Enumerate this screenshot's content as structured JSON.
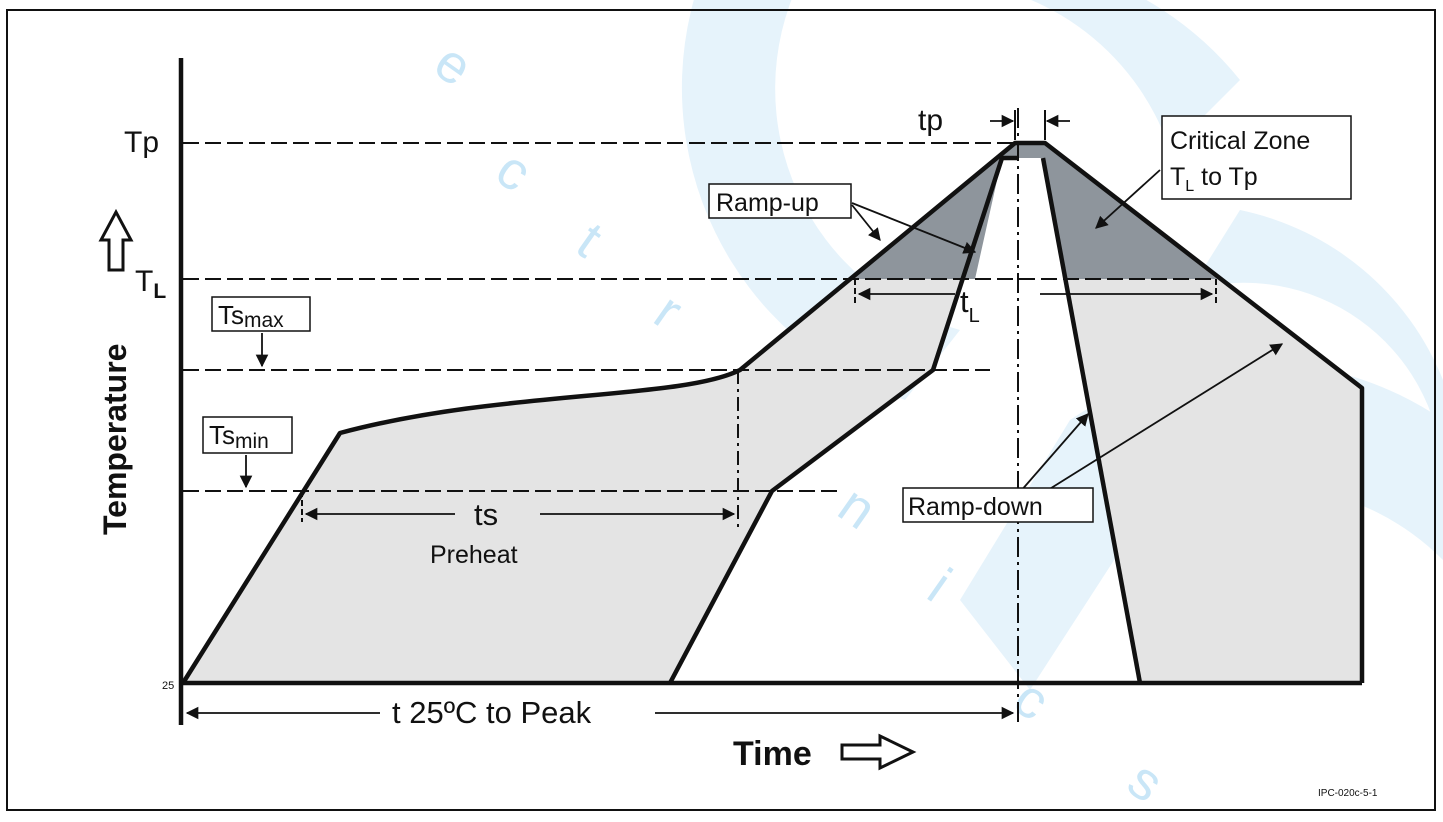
{
  "labels": {
    "tp_axis": "Tp",
    "tl_axis_main": "T",
    "tl_axis_sub": "L",
    "tick_25": "25",
    "tp_duration": "tp",
    "critical_zone_line1": "Critical Zone",
    "critical_zone_line2_main": "T",
    "critical_zone_line2_sub": "L",
    "critical_zone_line2_rest": " to Tp",
    "ramp_up": "Ramp-up",
    "ramp_down": "Ramp-down",
    "tsmax_main": "Ts",
    "tsmax_sub": "max",
    "tsmin_main": "Ts",
    "tsmin_sub": "min",
    "ts": "ts",
    "preheat": "Preheat",
    "tl_span_main": "t",
    "tl_span_sub": "L",
    "t25_to_peak": "t  25ºC to Peak",
    "y_axis_title": "Temperature",
    "x_axis_title": "Time",
    "figure_code": "IPC-020c-5-1"
  },
  "watermark": [
    "e",
    "c",
    "t",
    "r",
    "o",
    "n",
    "i",
    "c",
    "s"
  ],
  "colors": {
    "background": "#ffffff",
    "line": "#111111",
    "light_fill": "#e4e4e4",
    "critical_fill": "#8e959c",
    "watermark": "#c9e6f7"
  }
}
